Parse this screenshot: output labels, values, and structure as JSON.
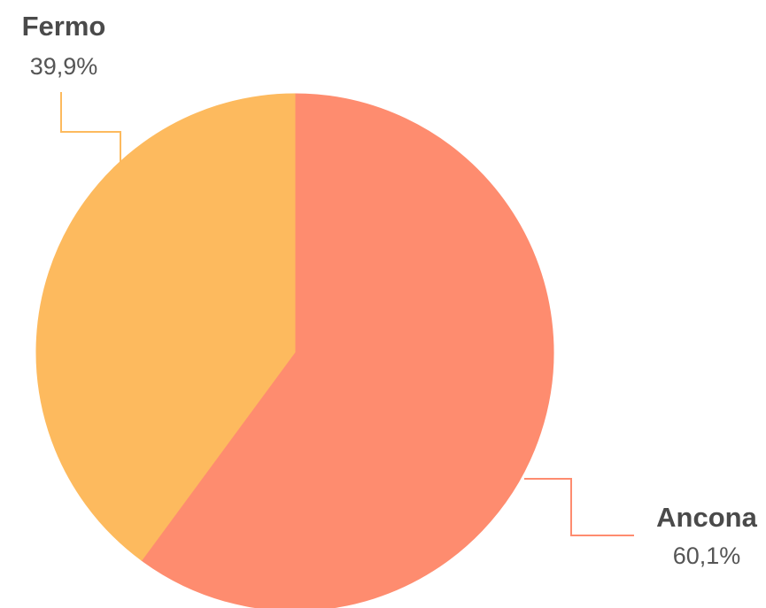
{
  "chart_data": {
    "type": "pie",
    "slices": [
      {
        "label": "Ancona",
        "value": 60.1,
        "value_label": "60,1%",
        "color": "#FE8C6F"
      },
      {
        "label": "Fermo",
        "value": 39.9,
        "value_label": "39,9%",
        "color": "#FDBA5E"
      }
    ],
    "start_angle": "12 o'clock",
    "direction": "clockwise",
    "legend": "none"
  }
}
